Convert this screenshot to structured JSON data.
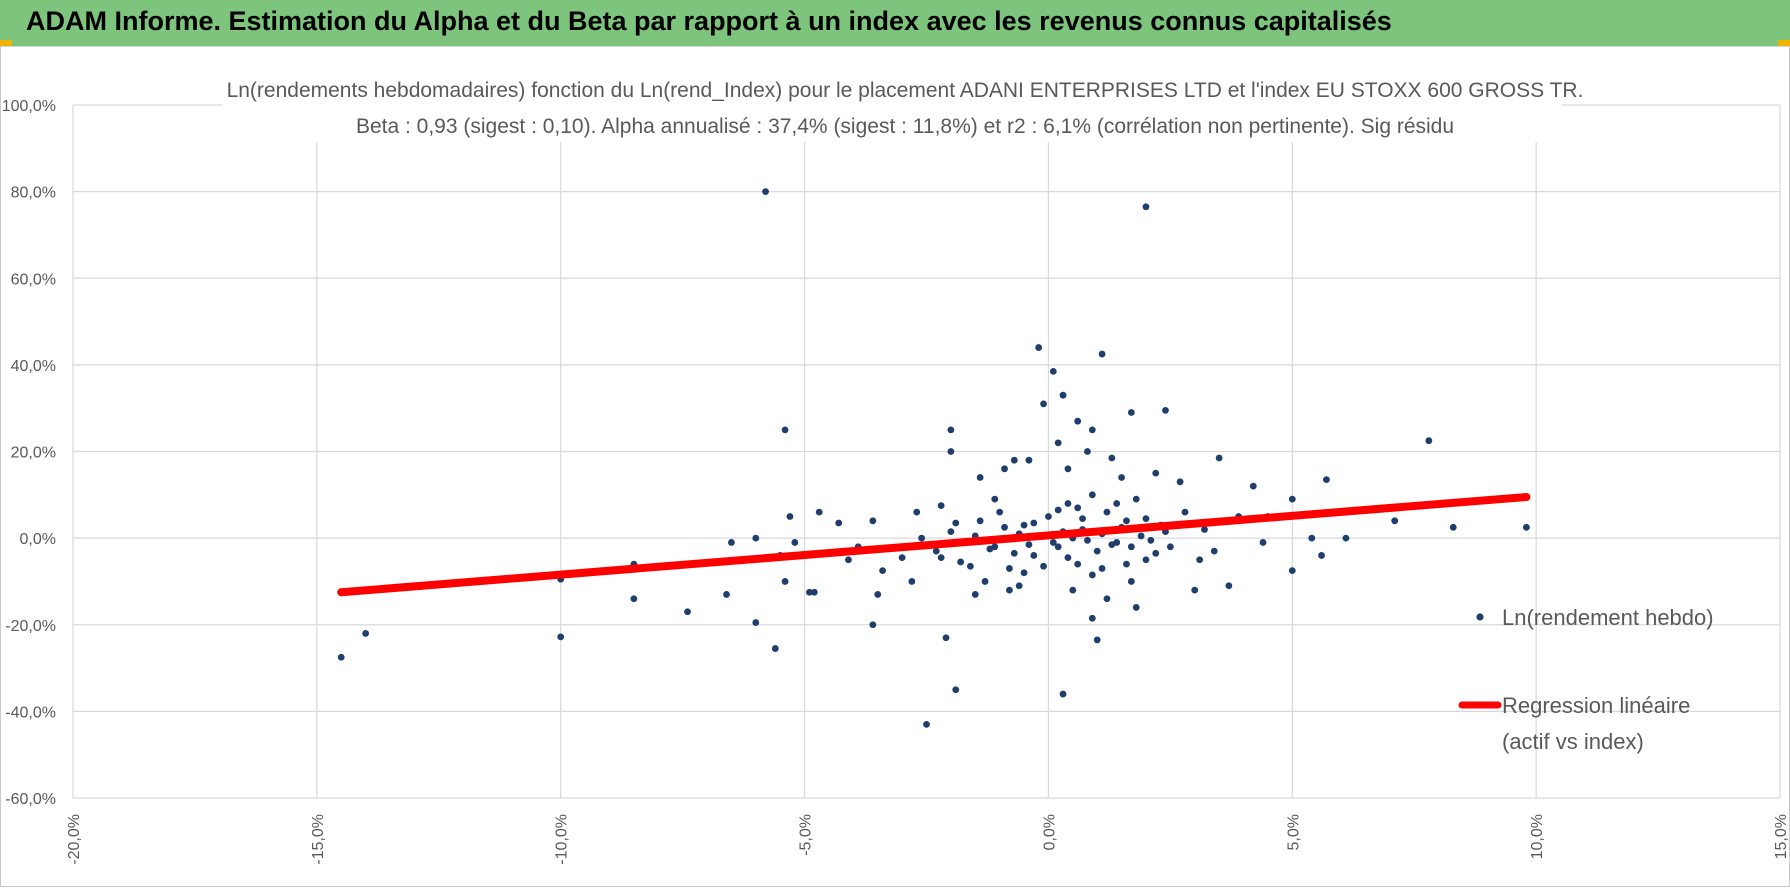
{
  "header": {
    "title": "ADAM Informe. Estimation du Alpha et du Beta par rapport à un index avec les revenus connus capitalisés"
  },
  "colors": {
    "header_bg": "#7dc57c",
    "points": "#1f3e6e",
    "regression": "#ff0000",
    "grid": "#d9d9d9"
  },
  "chart_data": {
    "type": "scatter",
    "title_line1": "Ln(rendements hebdomadaires) fonction du Ln(rend_Index) pour le placement ADANI ENTERPRISES LTD et l'index EU STOXX 600 GROSS TR.",
    "title_line2": "Beta : 0,93 (sigest : 0,10). Alpha annualisé : 37,4% (sigest : 11,8%) et r2 : 6,1% (corrélation non pertinente). Sig résidu",
    "xlim": [
      -20,
      15
    ],
    "ylim": [
      -60,
      100
    ],
    "grid": true,
    "legend_position": "right",
    "x_ticks": [
      {
        "v": -20,
        "label": "-20,0%"
      },
      {
        "v": -15,
        "label": "-15,0%"
      },
      {
        "v": -10,
        "label": "-10,0%"
      },
      {
        "v": -5,
        "label": "-5,0%"
      },
      {
        "v": 0,
        "label": "0,0%"
      },
      {
        "v": 5,
        "label": "5,0%"
      },
      {
        "v": 10,
        "label": "10,0%"
      },
      {
        "v": 15,
        "label": "15,0%"
      }
    ],
    "y_ticks": [
      {
        "v": 100,
        "label": "100,0%"
      },
      {
        "v": 80,
        "label": "80,0%"
      },
      {
        "v": 60,
        "label": "60,0%"
      },
      {
        "v": 40,
        "label": "40,0%"
      },
      {
        "v": 20,
        "label": "20,0%"
      },
      {
        "v": 0,
        "label": "0,0%"
      },
      {
        "v": -20,
        "label": "-20,0%"
      },
      {
        "v": -40,
        "label": "-40,0%"
      },
      {
        "v": -60,
        "label": "-60,0%"
      }
    ],
    "series": [
      {
        "name": "Ln(rendement hebdo)",
        "kind": "scatter",
        "points": [
          [
            -14.5,
            -27.5
          ],
          [
            -14.0,
            -22.0
          ],
          [
            -10.0,
            -9.5
          ],
          [
            -10.0,
            -22.8
          ],
          [
            -8.5,
            -14.0
          ],
          [
            -8.5,
            -6.0
          ],
          [
            -7.4,
            -17.0
          ],
          [
            -6.6,
            -13.0
          ],
          [
            -6.5,
            -1.0
          ],
          [
            -6.0,
            -19.5
          ],
          [
            -6.0,
            0.0
          ],
          [
            -5.8,
            80.0
          ],
          [
            -5.6,
            -25.5
          ],
          [
            -5.4,
            25.0
          ],
          [
            -5.3,
            5.0
          ],
          [
            -5.2,
            -1.0
          ],
          [
            -5.5,
            -4.0
          ],
          [
            -5.4,
            -10.0
          ],
          [
            -4.9,
            -12.5
          ],
          [
            -4.8,
            -12.5
          ],
          [
            -4.7,
            6.0
          ],
          [
            -3.6,
            -20.0
          ],
          [
            -3.5,
            -13.0
          ],
          [
            -2.1,
            -23.0
          ],
          [
            -1.9,
            -35.0
          ],
          [
            -2.5,
            -43.0
          ],
          [
            -2.0,
            20.0
          ],
          [
            -2.0,
            25.0
          ],
          [
            -1.4,
            14.0
          ],
          [
            -0.2,
            44.0
          ],
          [
            -0.1,
            31.0
          ],
          [
            0.1,
            38.5
          ],
          [
            0.3,
            -36.0
          ],
          [
            0.3,
            33.0
          ],
          [
            0.6,
            27.0
          ],
          [
            1.0,
            -23.5
          ],
          [
            1.1,
            42.5
          ],
          [
            0.9,
            -18.5
          ],
          [
            1.3,
            18.5
          ],
          [
            1.7,
            29.0
          ],
          [
            2.0,
            76.5
          ],
          [
            1.8,
            -16.0
          ],
          [
            2.4,
            29.5
          ],
          [
            3.0,
            -12.0
          ],
          [
            3.1,
            -5.0
          ],
          [
            3.7,
            -11.0
          ],
          [
            3.5,
            18.5
          ],
          [
            4.4,
            -1.0
          ],
          [
            5.0,
            -7.5
          ],
          [
            5.0,
            9.0
          ],
          [
            5.6,
            -4.0
          ],
          [
            5.7,
            13.5
          ],
          [
            6.1,
            0.0
          ],
          [
            7.1,
            4.0
          ],
          [
            7.8,
            22.5
          ],
          [
            8.3,
            2.5
          ],
          [
            9.8,
            2.5
          ],
          [
            5.4,
            0.0
          ],
          [
            4.2,
            12.0
          ],
          [
            3.9,
            5.0
          ],
          [
            4.5,
            5.0
          ],
          [
            2.7,
            13.0
          ],
          [
            2.2,
            15.0
          ],
          [
            1.7,
            -10.0
          ],
          [
            1.5,
            14.0
          ],
          [
            0.5,
            -12.0
          ],
          [
            0.4,
            16.0
          ],
          [
            -0.6,
            -11.0
          ],
          [
            -0.8,
            -12.0
          ],
          [
            -0.9,
            16.0
          ],
          [
            -0.7,
            18.0
          ],
          [
            -0.4,
            18.0
          ],
          [
            0.2,
            22.0
          ],
          [
            0.8,
            20.0
          ],
          [
            0.9,
            25.0
          ],
          [
            1.2,
            -14.0
          ],
          [
            -1.1,
            9.0
          ],
          [
            -1.3,
            -10.0
          ],
          [
            -1.5,
            -13.0
          ],
          [
            -2.8,
            -10.0
          ],
          [
            -3.0,
            -4.5
          ],
          [
            -3.4,
            -7.5
          ],
          [
            -3.9,
            -2.0
          ],
          [
            -4.1,
            -5.0
          ],
          [
            -4.3,
            3.5
          ],
          [
            -3.6,
            4.0
          ],
          [
            -2.7,
            6.0
          ],
          [
            -2.2,
            7.5
          ],
          [
            -1.8,
            -5.5
          ],
          [
            -1.1,
            -2.0
          ],
          [
            -0.5,
            3.0
          ],
          [
            -0.3,
            -4.0
          ],
          [
            0.0,
            5.0
          ],
          [
            0.2,
            -2.0
          ],
          [
            0.4,
            8.0
          ],
          [
            0.6,
            -6.0
          ],
          [
            0.7,
            2.0
          ],
          [
            0.9,
            10.0
          ],
          [
            1.0,
            -3.0
          ],
          [
            1.2,
            6.0
          ],
          [
            1.4,
            -1.0
          ],
          [
            1.6,
            4.0
          ],
          [
            1.8,
            9.0
          ],
          [
            2.0,
            -5.0
          ],
          [
            2.3,
            3.0
          ],
          [
            2.5,
            -2.0
          ],
          [
            2.8,
            6.0
          ],
          [
            3.2,
            2.0
          ],
          [
            3.4,
            -3.0
          ],
          [
            -0.2,
            0.5
          ],
          [
            0.1,
            -1.0
          ],
          [
            0.3,
            1.5
          ],
          [
            -0.4,
            -1.5
          ],
          [
            0.5,
            0.0
          ],
          [
            -0.6,
            1.0
          ],
          [
            0.8,
            -0.5
          ],
          [
            -0.9,
            2.5
          ],
          [
            1.1,
            1.0
          ],
          [
            -1.2,
            -2.5
          ],
          [
            1.3,
            -1.5
          ],
          [
            -1.5,
            0.5
          ],
          [
            1.5,
            2.5
          ],
          [
            -1.7,
            -1.0
          ],
          [
            1.7,
            -2.0
          ],
          [
            -2.0,
            1.5
          ],
          [
            1.9,
            0.5
          ],
          [
            -2.3,
            -3.0
          ],
          [
            2.1,
            -0.5
          ],
          [
            -2.6,
            0.0
          ],
          [
            2.4,
            1.5
          ],
          [
            -0.1,
            -6.5
          ],
          [
            0.2,
            6.5
          ],
          [
            -0.5,
            -8.0
          ],
          [
            0.6,
            7.0
          ],
          [
            -0.8,
            -7.0
          ],
          [
            0.9,
            -8.5
          ],
          [
            -1.0,
            6.0
          ],
          [
            1.1,
            -7.0
          ],
          [
            -1.4,
            4.0
          ],
          [
            1.4,
            8.0
          ],
          [
            -1.6,
            -6.5
          ],
          [
            1.6,
            -6.0
          ],
          [
            -1.9,
            3.5
          ],
          [
            2.0,
            4.5
          ],
          [
            -2.2,
            -4.5
          ],
          [
            2.2,
            -3.5
          ],
          [
            -0.3,
            3.5
          ],
          [
            0.4,
            -4.5
          ],
          [
            0.7,
            4.5
          ],
          [
            -0.7,
            -3.5
          ]
        ]
      },
      {
        "name": "Regression linéaire (actif vs index)",
        "legend_line1": "Regression linéaire",
        "legend_line2": "(actif vs index)",
        "kind": "line",
        "points": [
          [
            -14.5,
            -12.5
          ],
          [
            9.8,
            9.5
          ]
        ]
      }
    ]
  }
}
